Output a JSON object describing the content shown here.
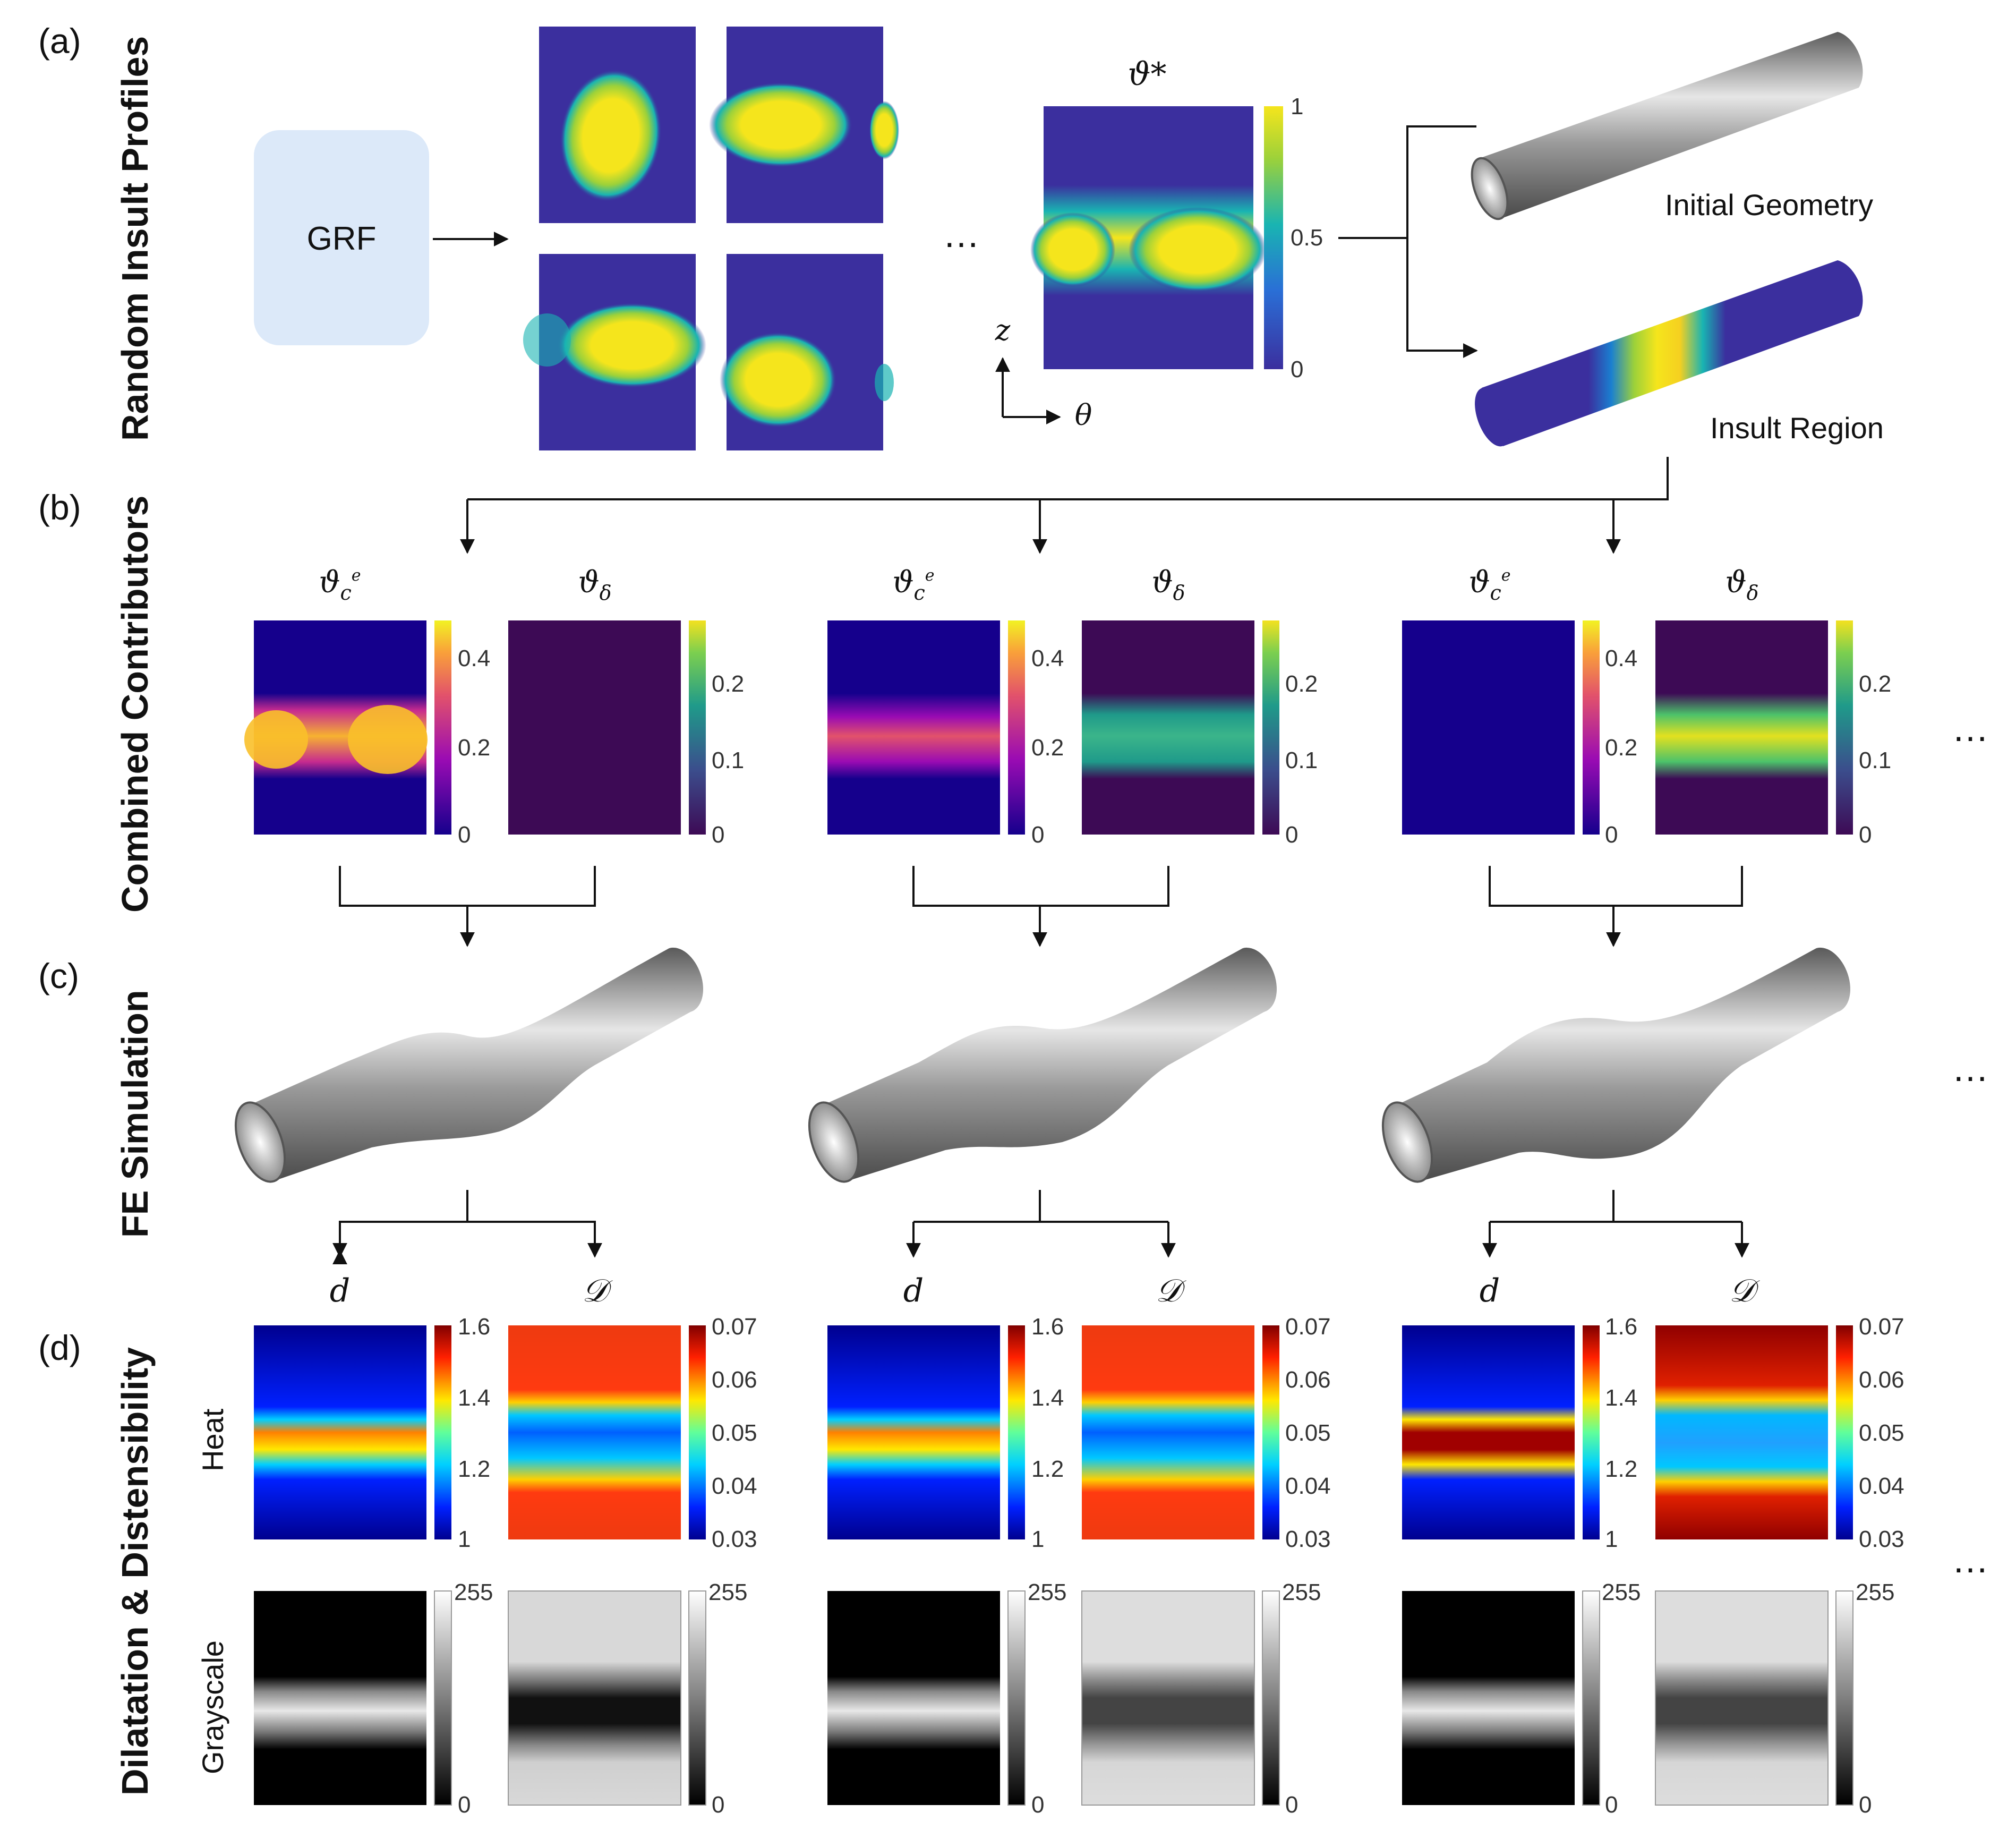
{
  "panels": {
    "a": {
      "letter": "(a)",
      "title": "Random Insult Profiles",
      "grf_label": "GRF",
      "ellipsis": "…",
      "theta_star": "ϑ*",
      "colorbar_ticks": [
        "1",
        "0.5",
        "0"
      ],
      "axis_z": "z",
      "axis_theta": "θ",
      "initial_geometry": "Initial Geometry",
      "insult_region": "Insult Region"
    },
    "b": {
      "letter": "(b)",
      "title": "Combined Contributors",
      "label_ce": "ϑ",
      "label_ce_sub": "c",
      "label_ce_sup": "e",
      "label_delta": "ϑ",
      "label_delta_sub": "δ",
      "ticks_ce": [
        "0.4",
        "0.2",
        "0"
      ],
      "ticks_delta": [
        "0.2",
        "0.1",
        "0"
      ],
      "ellipsis": "…"
    },
    "c": {
      "letter": "(c)",
      "title": "FE Simulation",
      "ellipsis": "…"
    },
    "d": {
      "letter": "(d)",
      "title": "Dilatation & Distensibility",
      "label_d": "d",
      "label_D": "𝒟",
      "row_heat": "Heat",
      "row_gray": "Grayscale",
      "ticks_d": [
        "1.6",
        "1.4",
        "1.2",
        "1"
      ],
      "ticks_D": [
        "0.07",
        "0.06",
        "0.05",
        "0.04",
        "0.03"
      ],
      "ticks_gray": [
        "255",
        "0"
      ],
      "ellipsis": "…"
    }
  },
  "colors": {
    "viridis_low": "#3b2f9e",
    "viridis_high": "#f5e51c",
    "grf_box": "#dce9f9",
    "cylinder_gray": "#8a8a8a"
  }
}
